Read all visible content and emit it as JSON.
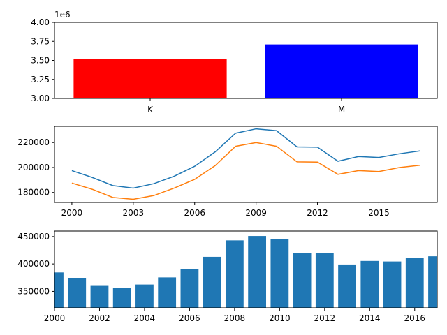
{
  "chart_data": [
    {
      "type": "bar",
      "categories": [
        "K",
        "M"
      ],
      "values": [
        3520000,
        3710000
      ],
      "colors": [
        "#ff0000",
        "#0000ff"
      ],
      "ylim": [
        3000000,
        4000000
      ],
      "yticks": [
        3000000,
        3250000,
        3500000,
        3750000,
        4000000
      ],
      "ytick_labels": [
        "3.00",
        "3.25",
        "3.50",
        "3.75",
        "4.00"
      ],
      "y_offset_label": "1e6",
      "grid": false
    },
    {
      "type": "line",
      "x": [
        2000,
        2001,
        2002,
        2003,
        2004,
        2005,
        2006,
        2007,
        2008,
        2009,
        2010,
        2011,
        2012,
        2013,
        2014,
        2015,
        2016,
        2017
      ],
      "series": [
        {
          "color": "#1f77b4",
          "values": [
            197500,
            192000,
            185500,
            183500,
            187000,
            193000,
            201000,
            212500,
            227500,
            231000,
            229500,
            216500,
            216300,
            205000,
            208800,
            208000,
            211000,
            213300
          ]
        },
        {
          "color": "#ff7f0e",
          "values": [
            187500,
            182500,
            176000,
            174500,
            177500,
            183500,
            190500,
            201500,
            217000,
            220000,
            217000,
            204500,
            204300,
            194500,
            197500,
            196800,
            200000,
            201800
          ]
        }
      ],
      "xlim": [
        1999.15,
        2017.85
      ],
      "ylim": [
        172000,
        233000
      ],
      "xticks": [
        2000,
        2003,
        2006,
        2009,
        2012,
        2015
      ],
      "yticks": [
        180000,
        200000,
        220000
      ],
      "grid": false
    },
    {
      "type": "bar",
      "x": [
        2000,
        2001,
        2002,
        2003,
        2004,
        2005,
        2006,
        2007,
        2008,
        2009,
        2010,
        2011,
        2012,
        2013,
        2014,
        2015,
        2016,
        2017
      ],
      "values": [
        384500,
        374000,
        360000,
        356500,
        362500,
        375500,
        390000,
        413000,
        443000,
        451000,
        445000,
        419500,
        419500,
        399000,
        405500,
        404500,
        410500,
        414000
      ],
      "color": "#1f77b4",
      "xlim": [
        2000,
        2017
      ],
      "ylim": [
        320000,
        460000
      ],
      "xticks": [
        2000,
        2002,
        2004,
        2006,
        2008,
        2010,
        2012,
        2014,
        2016
      ],
      "yticks": [
        350000,
        400000,
        450000
      ],
      "grid": false
    }
  ]
}
